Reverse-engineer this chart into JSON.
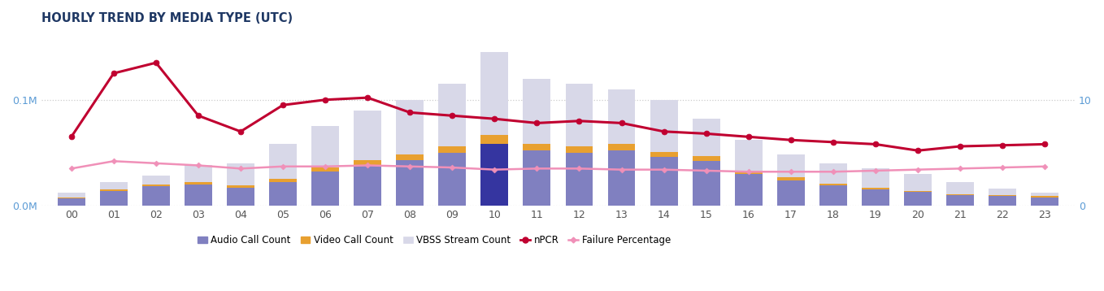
{
  "title": "HOURLY TREND BY MEDIA TYPE (UTC)",
  "hours": [
    "00",
    "01",
    "02",
    "03",
    "04",
    "05",
    "06",
    "07",
    "08",
    "09",
    "10",
    "11",
    "12",
    "13",
    "14",
    "15",
    "16",
    "17",
    "18",
    "19",
    "20",
    "21",
    "22",
    "23"
  ],
  "audio_call_count": [
    0.007,
    0.014,
    0.018,
    0.02,
    0.017,
    0.022,
    0.032,
    0.038,
    0.043,
    0.05,
    0.058,
    0.052,
    0.05,
    0.052,
    0.046,
    0.042,
    0.03,
    0.024,
    0.019,
    0.015,
    0.013,
    0.01,
    0.009,
    0.008
  ],
  "video_call_count": [
    0.001,
    0.001,
    0.002,
    0.002,
    0.002,
    0.003,
    0.004,
    0.005,
    0.005,
    0.006,
    0.009,
    0.006,
    0.006,
    0.006,
    0.005,
    0.005,
    0.003,
    0.003,
    0.002,
    0.002,
    0.001,
    0.001,
    0.001,
    0.001
  ],
  "vbss_stream_count": [
    0.012,
    0.022,
    0.028,
    0.038,
    0.04,
    0.058,
    0.075,
    0.09,
    0.1,
    0.115,
    0.145,
    0.12,
    0.115,
    0.11,
    0.1,
    0.082,
    0.062,
    0.048,
    0.04,
    0.035,
    0.03,
    0.022,
    0.016,
    0.012
  ],
  "npcr": [
    6.5,
    12.5,
    13.5,
    8.5,
    7.0,
    9.5,
    10.0,
    10.2,
    8.8,
    8.5,
    8.2,
    7.8,
    8.0,
    7.8,
    7.0,
    6.8,
    6.5,
    6.2,
    6.0,
    5.8,
    5.2,
    5.6,
    5.7,
    5.8
  ],
  "failure_pct": [
    3.5,
    4.2,
    4.0,
    3.8,
    3.5,
    3.7,
    3.7,
    3.8,
    3.7,
    3.6,
    3.4,
    3.5,
    3.5,
    3.4,
    3.4,
    3.3,
    3.2,
    3.2,
    3.2,
    3.3,
    3.4,
    3.5,
    3.6,
    3.7
  ],
  "audio_color": "#8080c0",
  "video_color": "#e8a030",
  "vbss_color": "#d8d8e8",
  "highlight_audio_color": "#3535a0",
  "npcr_color": "#c00030",
  "failure_color": "#f090b8",
  "background_color": "#ffffff",
  "left_ylim": [
    0,
    0.165
  ],
  "right_ylim": [
    0,
    16.5
  ],
  "left_yticks": [
    0.0,
    0.1
  ],
  "left_yticklabels": [
    "0.0M",
    "0.1M"
  ],
  "right_yticks": [
    0,
    10
  ],
  "right_yticklabels": [
    "0",
    "10"
  ],
  "title_color": "#1f3864",
  "highlight_hour": "10",
  "legend_labels": [
    "Audio Call Count",
    "Video Call Count",
    "VBSS Stream Count",
    "nPCR",
    "Failure Percentage"
  ]
}
